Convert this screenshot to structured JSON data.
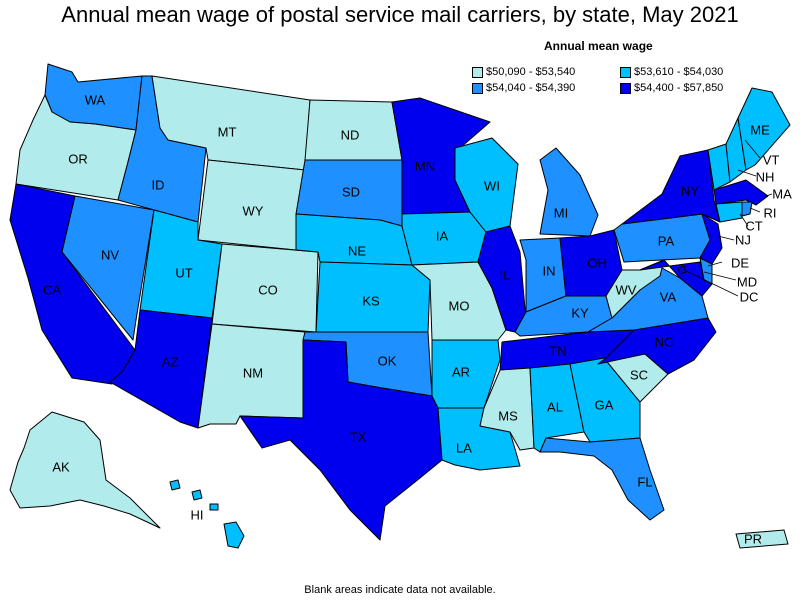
{
  "title": "Annual mean wage of postal service mail carriers, by state, May 2021",
  "legend": {
    "title": "Annual mean wage",
    "items": [
      {
        "label": "$50,090 - $53,540",
        "color": "#b2ebeb"
      },
      {
        "label": "$53,610 - $54,030",
        "color": "#00bfff"
      },
      {
        "label": "$54,040 - $54,390",
        "color": "#1e90ff"
      },
      {
        "label": "$54,400 - $57,850",
        "color": "#0000ee"
      }
    ]
  },
  "footnote": "Blank areas indicate data not available.",
  "chart_data": {
    "type": "choropleth",
    "states": [
      {
        "abbr": "WA",
        "bin": 2
      },
      {
        "abbr": "OR",
        "bin": 0
      },
      {
        "abbr": "CA",
        "bin": 3
      },
      {
        "abbr": "NV",
        "bin": 2
      },
      {
        "abbr": "ID",
        "bin": 2
      },
      {
        "abbr": "MT",
        "bin": 0
      },
      {
        "abbr": "WY",
        "bin": 0
      },
      {
        "abbr": "UT",
        "bin": 1
      },
      {
        "abbr": "AZ",
        "bin": 3
      },
      {
        "abbr": "CO",
        "bin": 0
      },
      {
        "abbr": "NM",
        "bin": 0
      },
      {
        "abbr": "ND",
        "bin": 0
      },
      {
        "abbr": "SD",
        "bin": 2
      },
      {
        "abbr": "NE",
        "bin": 1
      },
      {
        "abbr": "KS",
        "bin": 1
      },
      {
        "abbr": "OK",
        "bin": 2
      },
      {
        "abbr": "TX",
        "bin": 3
      },
      {
        "abbr": "MN",
        "bin": 3
      },
      {
        "abbr": "IA",
        "bin": 1
      },
      {
        "abbr": "MO",
        "bin": 0
      },
      {
        "abbr": "AR",
        "bin": 1
      },
      {
        "abbr": "LA",
        "bin": 1
      },
      {
        "abbr": "WI",
        "bin": 1
      },
      {
        "abbr": "IL",
        "bin": 3
      },
      {
        "abbr": "MI",
        "bin": 2
      },
      {
        "abbr": "IN",
        "bin": 2
      },
      {
        "abbr": "OH",
        "bin": 3
      },
      {
        "abbr": "KY",
        "bin": 2
      },
      {
        "abbr": "TN",
        "bin": 3
      },
      {
        "abbr": "MS",
        "bin": 0
      },
      {
        "abbr": "AL",
        "bin": 1
      },
      {
        "abbr": "GA",
        "bin": 1
      },
      {
        "abbr": "FL",
        "bin": 2
      },
      {
        "abbr": "SC",
        "bin": 0
      },
      {
        "abbr": "NC",
        "bin": 3
      },
      {
        "abbr": "VA",
        "bin": 2
      },
      {
        "abbr": "WV",
        "bin": 0
      },
      {
        "abbr": "PA",
        "bin": 2
      },
      {
        "abbr": "NY",
        "bin": 3
      },
      {
        "abbr": "ME",
        "bin": 1
      },
      {
        "abbr": "VT",
        "bin": 1
      },
      {
        "abbr": "NH",
        "bin": 1
      },
      {
        "abbr": "MA",
        "bin": 3
      },
      {
        "abbr": "RI",
        "bin": 2
      },
      {
        "abbr": "CT",
        "bin": 1
      },
      {
        "abbr": "NJ",
        "bin": 3
      },
      {
        "abbr": "DE",
        "bin": 2
      },
      {
        "abbr": "MD",
        "bin": 3
      },
      {
        "abbr": "DC",
        "bin": 3
      },
      {
        "abbr": "AK",
        "bin": 0
      },
      {
        "abbr": "HI",
        "bin": 1
      },
      {
        "abbr": "PR",
        "bin": 0
      }
    ]
  }
}
